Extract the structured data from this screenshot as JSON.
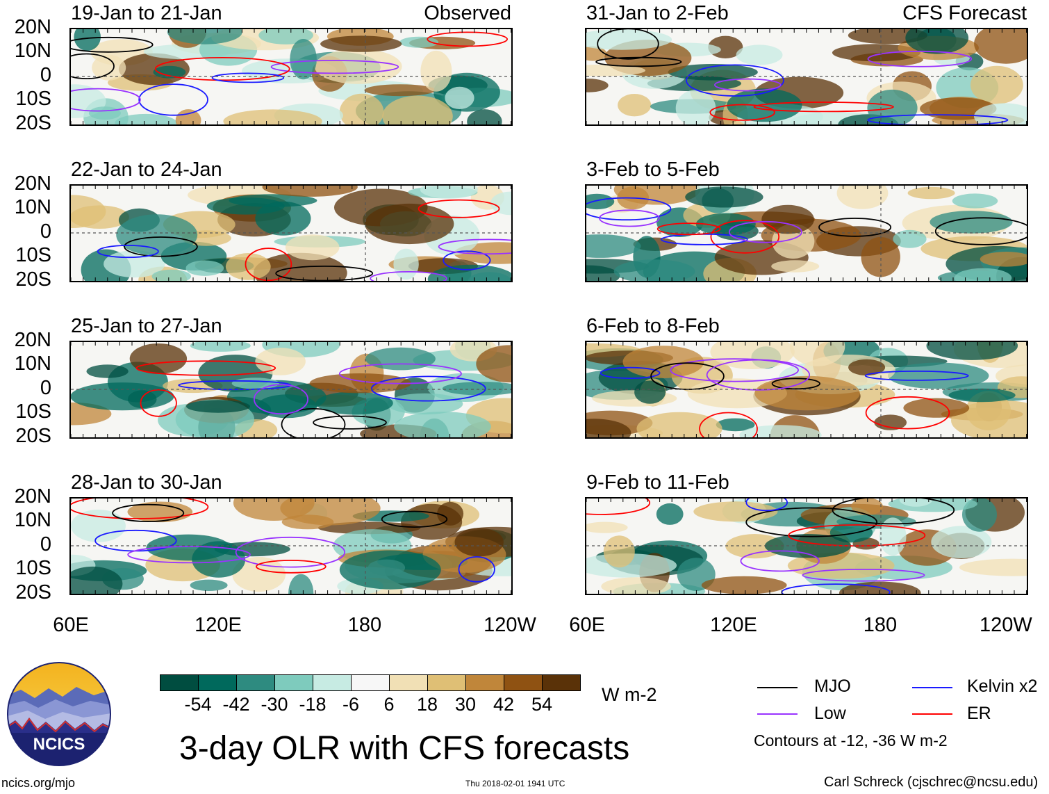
{
  "figure_title": "3-day OLR with CFS forecasts",
  "units": "W m-2",
  "tags": {
    "observed": "Observed",
    "forecast": "CFS Forecast"
  },
  "y_labels": [
    "20N",
    "10N",
    "0",
    "10S",
    "20S"
  ],
  "x_labels": [
    "60E",
    "120E",
    "180",
    "120W"
  ],
  "panels": {
    "left": [
      {
        "title": "19-Jan to 21-Jan"
      },
      {
        "title": "22-Jan to 24-Jan"
      },
      {
        "title": "25-Jan to 27-Jan"
      },
      {
        "title": "28-Jan to 30-Jan"
      }
    ],
    "right": [
      {
        "title": "31-Jan to 2-Feb"
      },
      {
        "title": "3-Feb to 5-Feb"
      },
      {
        "title": "6-Feb to 8-Feb"
      },
      {
        "title": "9-Feb to 11-Feb"
      }
    ]
  },
  "colorbar": {
    "colors": [
      "#004d40",
      "#00695c",
      "#2e8b80",
      "#7ecbbd",
      "#c7ebe3",
      "#f7f7f7",
      "#f1e0b5",
      "#dfbf75",
      "#c0863a",
      "#8f5212",
      "#5a3208"
    ],
    "labels": [
      "-54",
      "-42",
      "-30",
      "-18",
      "-6",
      "6",
      "18",
      "30",
      "42",
      "54"
    ]
  },
  "legend": {
    "items": [
      {
        "label": "MJO",
        "color": "#000000"
      },
      {
        "label": "Kelvin x2",
        "color": "#1a1aff"
      },
      {
        "label": "Low",
        "color": "#9933ff"
      },
      {
        "label": "ER",
        "color": "#ff0000"
      }
    ],
    "contours_note": "Contours at -12, -36 W m-2"
  },
  "logo": {
    "text": "NCICS"
  },
  "footer": {
    "left": "ncics.org/mjo",
    "center": "Thu 2018-02-01 1941 UTC",
    "right": "Carl Schreck (cjschrec@ncsu.edu)"
  }
}
